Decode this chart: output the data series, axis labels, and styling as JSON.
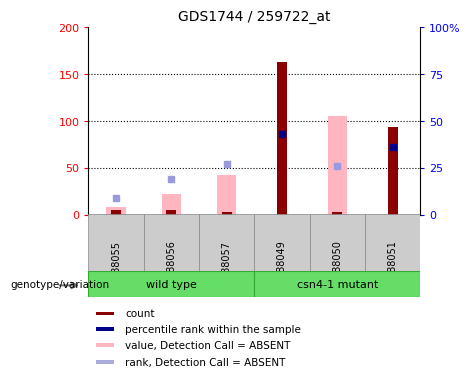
{
  "title": "GDS1744 / 259722_at",
  "samples": [
    "GSM88055",
    "GSM88056",
    "GSM88057",
    "GSM88049",
    "GSM88050",
    "GSM88051"
  ],
  "count_values": [
    5,
    5,
    3,
    163,
    3,
    93
  ],
  "rank_values": [
    null,
    null,
    null,
    43,
    null,
    36
  ],
  "pink_bar_values": [
    8,
    22,
    42,
    null,
    105,
    null
  ],
  "blue_dot_values": [
    9,
    19,
    27,
    null,
    26,
    null
  ],
  "count_color": "#8B0000",
  "rank_color": "#00008B",
  "pink_bar_color": "#FFB6C1",
  "blue_dot_color": "#9999DD",
  "ylim_left": [
    0,
    200
  ],
  "ylim_right": [
    0,
    100
  ],
  "yticks_left": [
    0,
    50,
    100,
    150,
    200
  ],
  "yticks_right": [
    0,
    25,
    50,
    75,
    100
  ],
  "ytick_labels_left": [
    "0",
    "50",
    "100",
    "150",
    "200"
  ],
  "ytick_labels_right": [
    "0",
    "25",
    "50",
    "75",
    "100%"
  ],
  "legend_items": [
    {
      "label": "count",
      "color": "#8B0000"
    },
    {
      "label": "percentile rank within the sample",
      "color": "#00008B"
    },
    {
      "label": "value, Detection Call = ABSENT",
      "color": "#FFB6C1"
    },
    {
      "label": "rank, Detection Call = ABSENT",
      "color": "#AAAADD"
    }
  ]
}
